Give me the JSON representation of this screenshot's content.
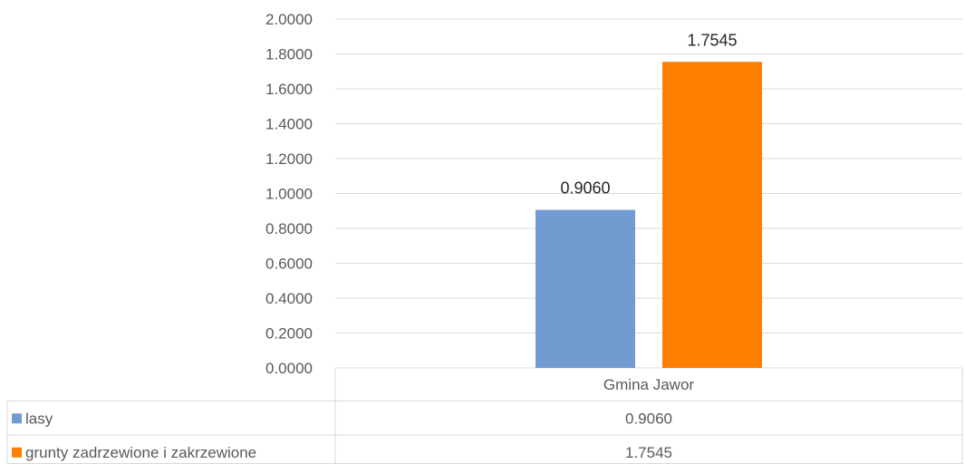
{
  "chart_data": {
    "type": "bar",
    "categories": [
      "Gmina Jawor"
    ],
    "series": [
      {
        "name": "lasy",
        "values": [
          0.906
        ],
        "value_labels": [
          "0.9060"
        ],
        "color": "#719BD1"
      },
      {
        "name": "grunty zadrzewione i zakrzewione",
        "values": [
          1.7545
        ],
        "value_labels": [
          "1.7545"
        ],
        "color": "#FF7F00"
      }
    ],
    "ylim": [
      0,
      2.0
    ],
    "y_ticks": [
      "0.0000",
      "0.2000",
      "0.4000",
      "0.6000",
      "0.8000",
      "1.0000",
      "1.2000",
      "1.4000",
      "1.6000",
      "1.8000",
      "2.0000"
    ],
    "title": "",
    "xlabel": "",
    "ylabel": "",
    "grid": true,
    "legend": "data-table"
  }
}
